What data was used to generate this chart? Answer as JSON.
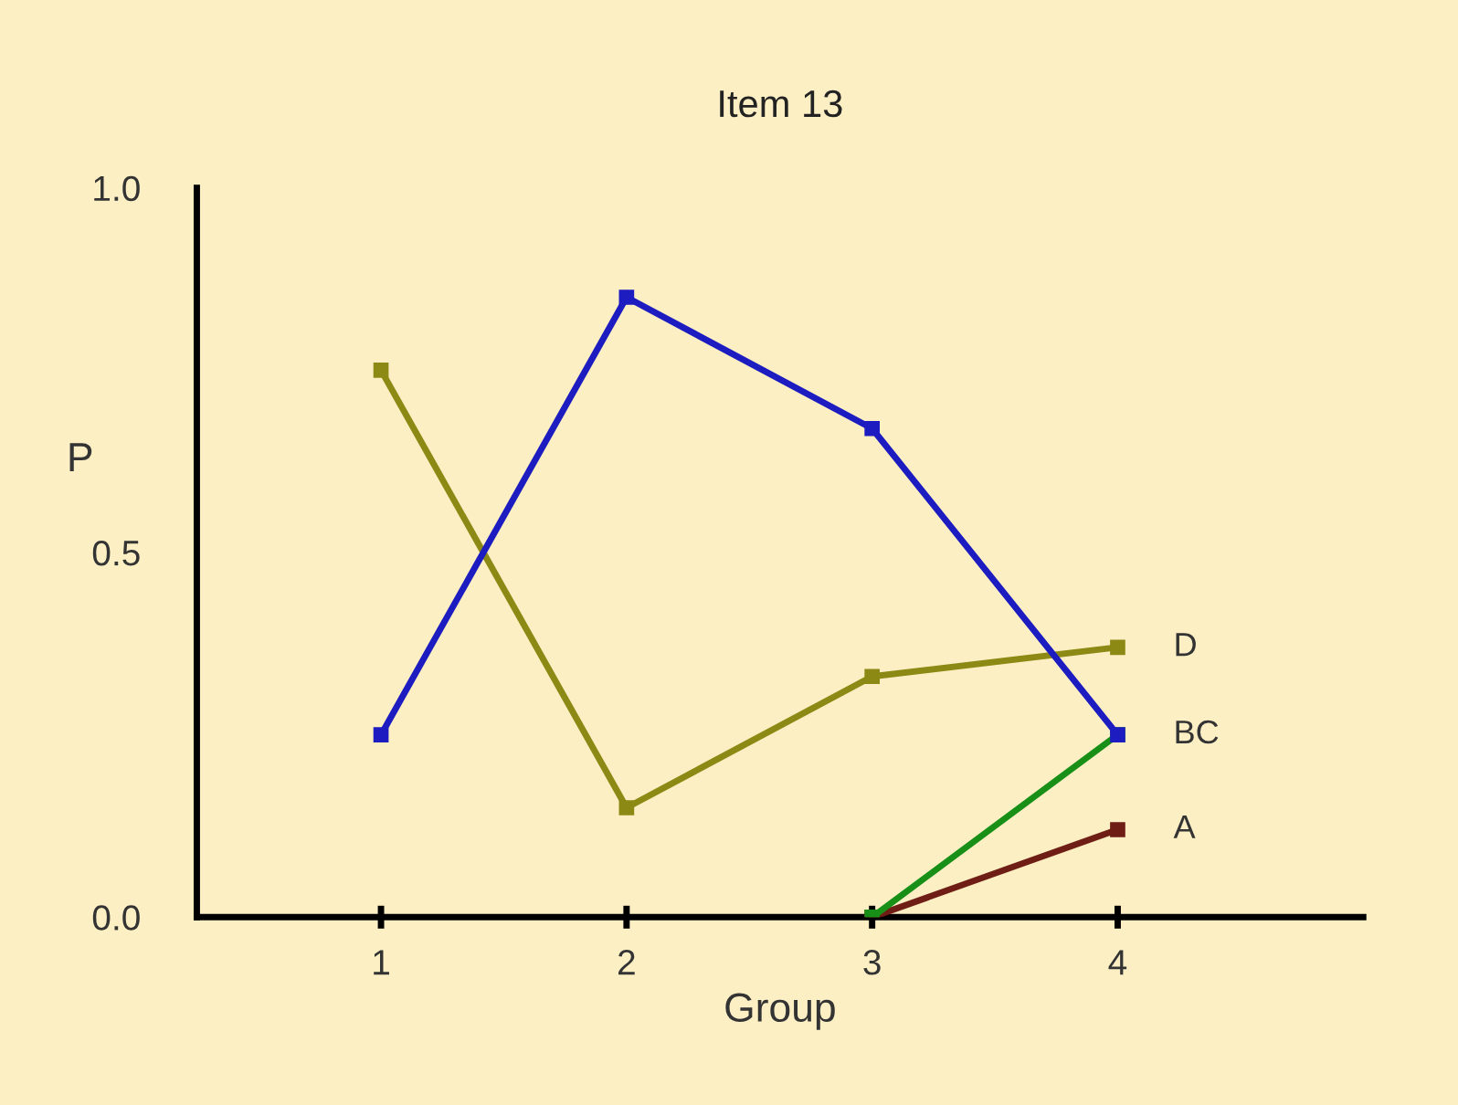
{
  "chart_data": {
    "type": "line",
    "title": "Item 13",
    "xlabel": "Group",
    "ylabel": "P",
    "x": [
      1,
      2,
      3,
      4
    ],
    "series": [
      {
        "color": "#1c1cc0",
        "values": [
          0.25,
          0.85,
          0.67,
          0.25
        ]
      },
      {
        "name": "D",
        "color": "#8c8a14",
        "values": [
          0.75,
          0.15,
          0.33,
          0.37
        ]
      },
      {
        "color": "#189018",
        "values": [
          null,
          null,
          0,
          0.25
        ]
      },
      {
        "name": "A",
        "color": "#6e1e14",
        "values": [
          null,
          null,
          0,
          0.12
        ]
      }
    ],
    "annotations": [
      {
        "text": "BC",
        "x": 4,
        "y": 0.25
      }
    ],
    "xlim": [
      0.25,
      5
    ],
    "ylim": [
      0,
      1.0
    ],
    "xticks": [
      1,
      2,
      3,
      4
    ],
    "yticks": [
      {
        "value": 0,
        "label": "0.0"
      },
      0.5,
      {
        "value": 1,
        "label": "1.0"
      }
    ],
    "grid": false,
    "legend": false,
    "marker": "square",
    "line_style": "solid"
  }
}
